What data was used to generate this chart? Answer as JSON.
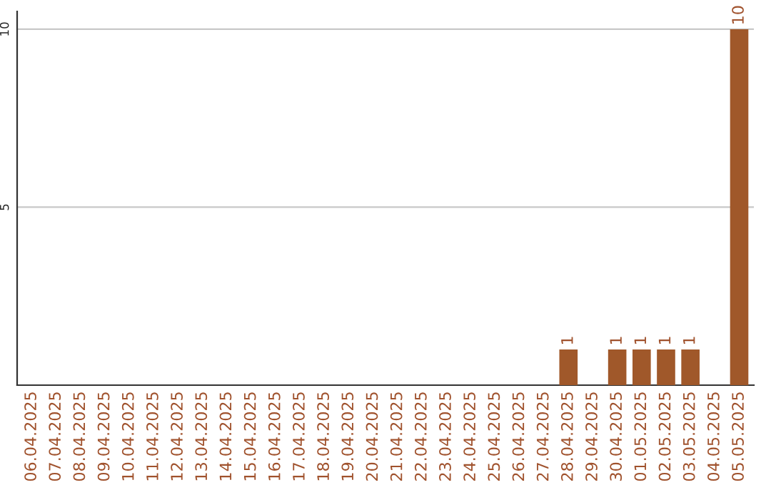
{
  "chart_data": {
    "type": "bar",
    "categories": [
      "06.04.2025",
      "07.04.2025",
      "08.04.2025",
      "09.04.2025",
      "10.04.2025",
      "11.04.2025",
      "12.04.2025",
      "13.04.2025",
      "14.04.2025",
      "15.04.2025",
      "16.04.2025",
      "17.04.2025",
      "18.04.2025",
      "19.04.2025",
      "20.04.2025",
      "21.04.2025",
      "22.04.2025",
      "23.04.2025",
      "24.04.2025",
      "25.04.2025",
      "26.04.2025",
      "27.04.2025",
      "28.04.2025",
      "29.04.2025",
      "30.04.2025",
      "01.05.2025",
      "02.05.2025",
      "03.05.2025",
      "04.05.2025",
      "05.05.2025"
    ],
    "values": [
      0,
      0,
      0,
      0,
      0,
      0,
      0,
      0,
      0,
      0,
      0,
      0,
      0,
      0,
      0,
      0,
      0,
      0,
      0,
      0,
      0,
      0,
      1,
      0,
      1,
      1,
      1,
      1,
      0,
      10
    ],
    "value_labels": [
      null,
      null,
      null,
      null,
      null,
      null,
      null,
      null,
      null,
      null,
      null,
      null,
      null,
      null,
      null,
      null,
      null,
      null,
      null,
      null,
      null,
      null,
      "1",
      null,
      "1",
      "1",
      "1",
      "1",
      null,
      "10"
    ],
    "color": "#a0582a",
    "ylim": [
      0,
      10.5
    ],
    "yticks": [
      5,
      10
    ],
    "grid": "y"
  }
}
